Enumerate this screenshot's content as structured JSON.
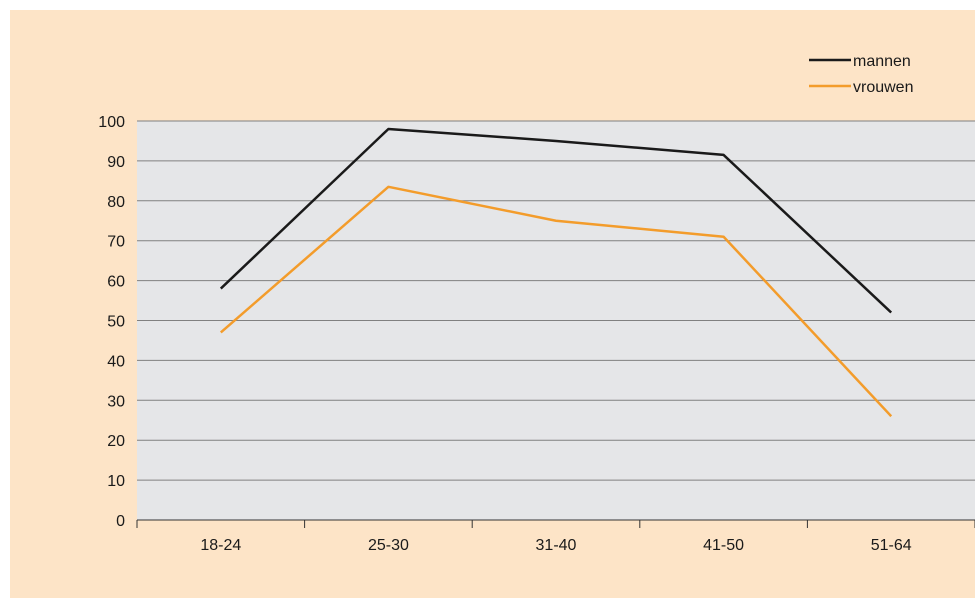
{
  "chart_data": {
    "type": "line",
    "categories": [
      "18-24",
      "25-30",
      "31-40",
      "41-50",
      "51-64"
    ],
    "series": [
      {
        "name": "mannen",
        "color": "#1a1a1a",
        "values": [
          58,
          98,
          95,
          91.5,
          52
        ]
      },
      {
        "name": "vrouwen",
        "color": "#f39c2b",
        "values": [
          47,
          83.5,
          75,
          71,
          26
        ]
      }
    ],
    "ylim": [
      0,
      100
    ],
    "yticks": [
      0,
      10,
      20,
      30,
      40,
      50,
      60,
      70,
      80,
      90,
      100
    ],
    "grid": true,
    "legend_position": "top-right",
    "colors": {
      "background": "#fde4c7",
      "plot_area": "#e5e6e8",
      "gridline": "#808080"
    }
  }
}
